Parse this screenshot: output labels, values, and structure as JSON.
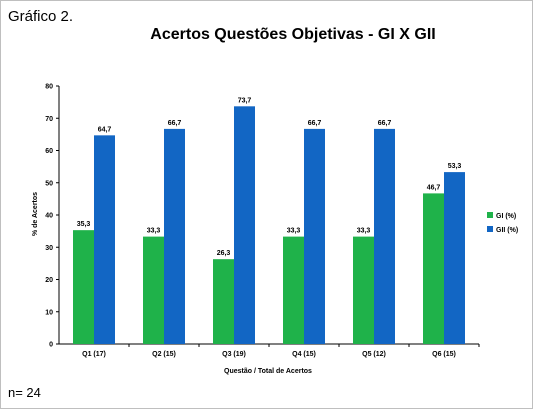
{
  "figure": {
    "caption": "Gráfico 2.",
    "footnote": "n= 24"
  },
  "chart_data": {
    "type": "bar",
    "title": "Acertos  Questões  Objetivas  -  GI  X  GII",
    "xlabel": "Questão / Total de Acertos",
    "ylabel": "% de Acertos",
    "categories": [
      "Q1 (17)",
      "Q2 (15)",
      "Q3 (19)",
      "Q4 (15)",
      "Q5 (12)",
      "Q6 (15)"
    ],
    "series": [
      {
        "name": "GI (%)",
        "color": "#1fb24a",
        "values": [
          35.3,
          33.3,
          26.3,
          33.3,
          33.3,
          46.7
        ],
        "labels": [
          "35,3",
          "33,3",
          "26,3",
          "33,3",
          "33,3",
          "46,7"
        ]
      },
      {
        "name": "GII (%)",
        "color": "#1266c4",
        "values": [
          64.7,
          66.7,
          73.7,
          66.7,
          66.7,
          53.3
        ],
        "labels": [
          "64,7",
          "66,7",
          "73,7",
          "66,7",
          "66,7",
          "53,3"
        ]
      }
    ],
    "ylim": [
      0,
      80
    ],
    "yticks": [
      0,
      10,
      20,
      30,
      40,
      50,
      60,
      70,
      80
    ],
    "grid": false,
    "legend_position": "right"
  }
}
